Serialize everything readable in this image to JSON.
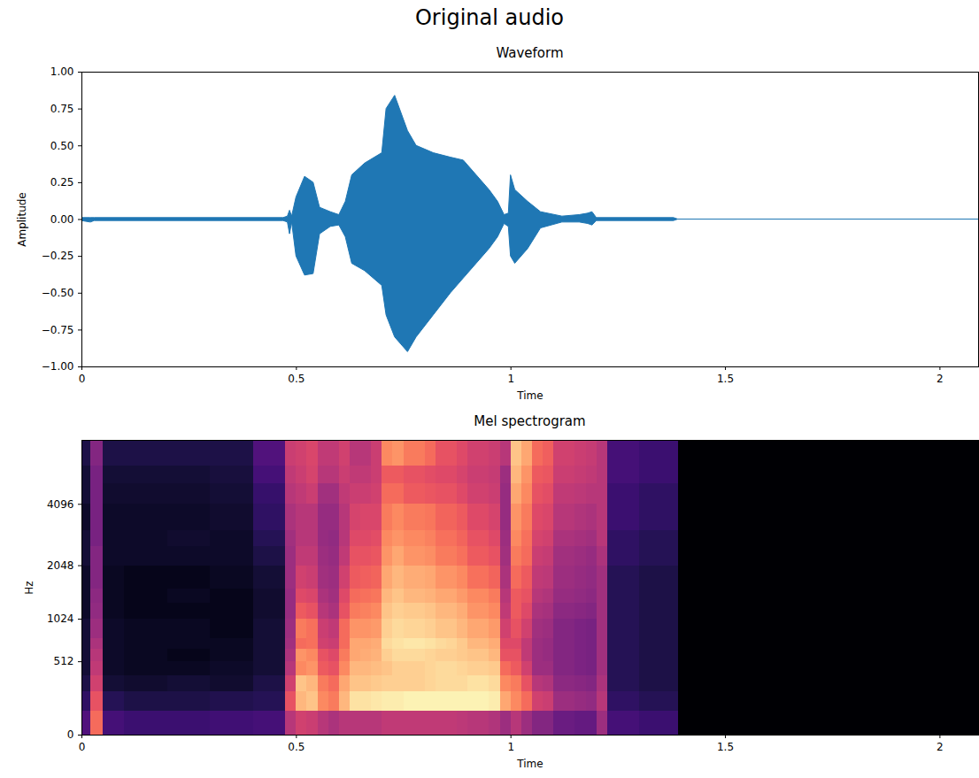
{
  "title": "Original audio",
  "chart_data": [
    {
      "type": "area",
      "title": "Waveform",
      "xlabel": "Time",
      "ylabel": "Amplitude",
      "color": "#1f77b4",
      "grid": false,
      "xlim": [
        0,
        2.09
      ],
      "xticks": [
        0,
        0.5,
        1,
        1.5,
        2
      ],
      "ylim": [
        -1,
        1
      ],
      "yticks": [
        {
          "value": -1,
          "label": "−1.00"
        },
        {
          "value": -0.75,
          "label": "−0.75"
        },
        {
          "value": -0.5,
          "label": "−0.50"
        },
        {
          "value": -0.25,
          "label": "−0.25"
        },
        {
          "value": 0,
          "label": "0.00"
        },
        {
          "value": 0.25,
          "label": "0.25"
        },
        {
          "value": 0.5,
          "label": "0.50"
        },
        {
          "value": 0.75,
          "label": "0.75"
        },
        {
          "value": 1,
          "label": "1.00"
        }
      ],
      "x": [
        0,
        0.02,
        0.021,
        0.03,
        0.47,
        0.48,
        0.485,
        0.49,
        0.5,
        0.52,
        0.54,
        0.555,
        0.58,
        0.6,
        0.615,
        0.63,
        0.66,
        0.7,
        0.71,
        0.73,
        0.76,
        0.78,
        0.82,
        0.86,
        0.89,
        0.92,
        0.95,
        0.97,
        0.985,
        0.995,
        1.0,
        1.01,
        1.04,
        1.07,
        1.12,
        1.16,
        1.18,
        1.19,
        1.2,
        1.38,
        1.39,
        2.09
      ],
      "ymax": [
        0.01,
        0.01,
        0.01,
        0.01,
        0.01,
        0.02,
        0.06,
        0.02,
        0.15,
        0.29,
        0.25,
        0.08,
        0.05,
        0.03,
        0.12,
        0.3,
        0.38,
        0.45,
        0.75,
        0.84,
        0.6,
        0.5,
        0.45,
        0.42,
        0.4,
        0.3,
        0.2,
        0.12,
        0.03,
        0.04,
        0.3,
        0.2,
        0.12,
        0.05,
        0.02,
        0.03,
        0.04,
        0.05,
        0.01,
        0.01,
        0,
        0
      ],
      "ymin": [
        -0.01,
        -0.02,
        -0.02,
        -0.01,
        -0.01,
        -0.02,
        -0.1,
        -0.02,
        -0.25,
        -0.38,
        -0.37,
        -0.1,
        -0.05,
        -0.04,
        -0.12,
        -0.3,
        -0.35,
        -0.45,
        -0.65,
        -0.8,
        -0.9,
        -0.8,
        -0.65,
        -0.5,
        -0.4,
        -0.3,
        -0.2,
        -0.12,
        -0.03,
        -0.05,
        -0.25,
        -0.3,
        -0.2,
        -0.06,
        -0.02,
        -0.02,
        -0.03,
        -0.04,
        -0.01,
        -0.01,
        0,
        0
      ]
    },
    {
      "type": "heatmap",
      "title": "Mel spectrogram",
      "xlabel": "Time",
      "ylabel": "Hz",
      "log": "y",
      "grid": false,
      "xlim": [
        0,
        2.09
      ],
      "xticks": [
        0,
        0.5,
        1,
        1.5,
        2
      ],
      "ylim": [
        0,
        8000
      ],
      "yticks": [
        0,
        512,
        1024,
        2048,
        4096
      ],
      "zlim": [
        -80,
        0
      ],
      "x_edges": [
        0,
        0.02,
        0.05,
        0.1,
        0.2,
        0.3,
        0.4,
        0.475,
        0.5,
        0.525,
        0.55,
        0.575,
        0.6,
        0.625,
        0.65,
        0.675,
        0.7,
        0.725,
        0.75,
        0.775,
        0.8,
        0.825,
        0.85,
        0.875,
        0.9,
        0.925,
        0.95,
        0.975,
        1.0,
        1.025,
        1.05,
        1.075,
        1.1,
        1.125,
        1.15,
        1.175,
        1.2,
        1.225,
        1.3,
        1.39,
        2.09
      ],
      "y_edges": [
        0,
        128,
        256,
        384,
        512,
        640,
        768,
        1024,
        1280,
        1536,
        2048,
        2560,
        3072,
        4096,
        5120,
        6144,
        8000
      ],
      "cells": [
        [
          -60,
          -66,
          -70,
          -72,
          -72,
          -72,
          -72,
          -74,
          -74,
          -74,
          -72,
          -72,
          -74,
          -72,
          -72,
          -70
        ],
        [
          -25,
          -30,
          -35,
          -38,
          -40,
          -42,
          -45,
          -47,
          -48,
          -50,
          -50,
          -52,
          -52,
          -52,
          -52,
          -50
        ],
        [
          -62,
          -68,
          -72,
          -74,
          -74,
          -74,
          -74,
          -75,
          -75,
          -75,
          -74,
          -74,
          -74,
          -73,
          -72,
          -70
        ],
        [
          -64,
          -70,
          -73,
          -75,
          -75,
          -75,
          -75,
          -76,
          -76,
          -76,
          -74,
          -74,
          -74,
          -73,
          -72,
          -70
        ],
        [
          -64,
          -70,
          -72,
          -75,
          -76,
          -75,
          -75,
          -76,
          -75,
          -76,
          -74,
          -73,
          -74,
          -73,
          -72,
          -70
        ],
        [
          -63,
          -69,
          -73,
          -74,
          -75,
          -75,
          -76,
          -76,
          -76,
          -75,
          -74,
          -74,
          -73,
          -72,
          -71,
          -70
        ],
        [
          -62,
          -68,
          -70,
          -72,
          -72,
          -72,
          -72,
          -73,
          -73,
          -72,
          -70,
          -68,
          -66,
          -65,
          -62,
          -60
        ],
        [
          -40,
          -30,
          -35,
          -40,
          -42,
          -44,
          -45,
          -46,
          -46,
          -45,
          -45,
          -44,
          -42,
          -40,
          -38,
          -36
        ],
        [
          -35,
          -12,
          -10,
          -20,
          -18,
          -25,
          -22,
          -28,
          -32,
          -35,
          -38,
          -40,
          -40,
          -38,
          -36,
          -35
        ],
        [
          -36,
          -10,
          -12,
          -18,
          -20,
          -24,
          -24,
          -30,
          -33,
          -36,
          -38,
          -40,
          -40,
          -36,
          -34,
          -33
        ],
        [
          -40,
          -20,
          -22,
          -28,
          -30,
          -35,
          -36,
          -40,
          -42,
          -44,
          -45,
          -46,
          -46,
          -44,
          -40,
          -38
        ],
        [
          -42,
          -22,
          -25,
          -30,
          -32,
          -36,
          -38,
          -42,
          -44,
          -45,
          -46,
          -47,
          -46,
          -44,
          -40,
          -38
        ],
        [
          -40,
          -12,
          -15,
          -20,
          -22,
          -25,
          -25,
          -30,
          -32,
          -35,
          -38,
          -40,
          -40,
          -38,
          -36,
          -35
        ],
        [
          -40,
          -5,
          -10,
          -12,
          -15,
          -15,
          -18,
          -22,
          -25,
          -28,
          -30,
          -32,
          -34,
          -36,
          -38,
          -40
        ],
        [
          -40,
          -5,
          -10,
          -12,
          -14,
          -15,
          -18,
          -21,
          -24,
          -27,
          -30,
          -32,
          -33,
          -36,
          -38,
          -40
        ],
        [
          -40,
          -4,
          -9,
          -11,
          -13,
          -14,
          -17,
          -20,
          -23,
          -26,
          -29,
          -31,
          -33,
          -35,
          -36,
          -36
        ],
        [
          -38,
          -3,
          -8,
          -10,
          -8,
          -6,
          -8,
          -10,
          -12,
          -15,
          -18,
          -20,
          -22,
          -25,
          -28,
          -20
        ],
        [
          -38,
          -3,
          -8,
          -8,
          -6,
          -5,
          -6,
          -8,
          -10,
          -12,
          -15,
          -18,
          -20,
          -25,
          -28,
          -18
        ],
        [
          -38,
          -2,
          -8,
          -8,
          -6,
          -4,
          -7,
          -9,
          -12,
          -14,
          -18,
          -20,
          -22,
          -28,
          -30,
          -22
        ],
        [
          -38,
          -2,
          -8,
          -8,
          -6,
          -4,
          -7,
          -9,
          -12,
          -14,
          -18,
          -20,
          -22,
          -28,
          -30,
          -22
        ],
        [
          -38,
          -2,
          -7,
          -7,
          -7,
          -5,
          -8,
          -10,
          -13,
          -15,
          -19,
          -21,
          -23,
          -29,
          -31,
          -25
        ],
        [
          -38,
          -2,
          -6,
          -6,
          -8,
          -6,
          -10,
          -12,
          -15,
          -18,
          -22,
          -24,
          -26,
          -30,
          -32,
          -30
        ],
        [
          -38,
          -2,
          -6,
          -6,
          -8,
          -7,
          -10,
          -12,
          -15,
          -18,
          -22,
          -24,
          -26,
          -30,
          -32,
          -30
        ],
        [
          -39,
          -2,
          -6,
          -7,
          -9,
          -9,
          -12,
          -14,
          -17,
          -20,
          -24,
          -26,
          -28,
          -32,
          -34,
          -32
        ],
        [
          -40,
          -2,
          -5,
          -8,
          -10,
          -12,
          -15,
          -18,
          -20,
          -24,
          -28,
          -30,
          -32,
          -35,
          -36,
          -35
        ],
        [
          -40,
          -2,
          -5,
          -8,
          -10,
          -12,
          -15,
          -18,
          -20,
          -24,
          -28,
          -30,
          -32,
          -35,
          -36,
          -35
        ],
        [
          -41,
          -3,
          -6,
          -9,
          -12,
          -14,
          -17,
          -20,
          -22,
          -26,
          -30,
          -32,
          -34,
          -36,
          -37,
          -36
        ],
        [
          -45,
          -15,
          -20,
          -25,
          -30,
          -32,
          -35,
          -38,
          -40,
          -42,
          -44,
          -45,
          -46,
          -46,
          -45,
          -40
        ],
        [
          -40,
          -20,
          -22,
          -28,
          -30,
          -32,
          -30,
          -28,
          -28,
          -25,
          -22,
          -20,
          -18,
          -15,
          -12,
          -10
        ],
        [
          -45,
          -25,
          -30,
          -35,
          -38,
          -38,
          -35,
          -32,
          -30,
          -28,
          -25,
          -24,
          -22,
          -20,
          -18,
          -15
        ],
        [
          -50,
          -35,
          -40,
          -45,
          -45,
          -45,
          -44,
          -42,
          -40,
          -38,
          -36,
          -34,
          -32,
          -30,
          -28,
          -25
        ],
        [
          -50,
          -36,
          -41,
          -45,
          -46,
          -46,
          -45,
          -43,
          -41,
          -39,
          -37,
          -35,
          -33,
          -31,
          -29,
          -27
        ],
        [
          -55,
          -45,
          -48,
          -50,
          -50,
          -50,
          -50,
          -48,
          -46,
          -45,
          -44,
          -42,
          -40,
          -38,
          -36,
          -35
        ],
        [
          -55,
          -45,
          -48,
          -50,
          -50,
          -50,
          -50,
          -48,
          -46,
          -45,
          -44,
          -42,
          -40,
          -38,
          -36,
          -35
        ],
        [
          -56,
          -46,
          -49,
          -51,
          -51,
          -51,
          -51,
          -49,
          -47,
          -46,
          -45,
          -43,
          -41,
          -39,
          -37,
          -36
        ],
        [
          -56,
          -47,
          -50,
          -52,
          -52,
          -52,
          -52,
          -50,
          -48,
          -47,
          -46,
          -44,
          -42,
          -40,
          -38,
          -37
        ],
        [
          -45,
          -40,
          -42,
          -44,
          -44,
          -44,
          -44,
          -44,
          -44,
          -44,
          -42,
          -40,
          -40,
          -40,
          -40,
          -40
        ],
        [
          -62,
          -66,
          -68,
          -68,
          -68,
          -68,
          -68,
          -68,
          -68,
          -68,
          -66,
          -66,
          -64,
          -64,
          -62,
          -62
        ],
        [
          -64,
          -68,
          -70,
          -70,
          -70,
          -70,
          -70,
          -70,
          -70,
          -70,
          -68,
          -68,
          -66,
          -66,
          -64,
          -64
        ],
        [
          -80,
          -80,
          -80,
          -80,
          -80,
          -80,
          -80,
          -80,
          -80,
          -80,
          -80,
          -80,
          -80,
          -80,
          -80,
          -80
        ]
      ]
    }
  ]
}
